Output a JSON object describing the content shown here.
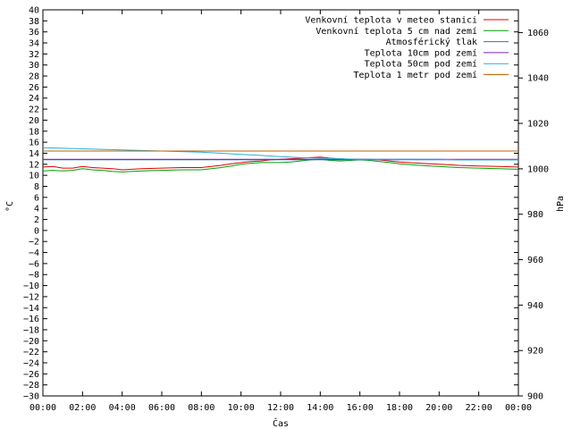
{
  "chart_data": {
    "type": "line",
    "xlabel": "Čas",
    "ylabel_left": "°C",
    "ylabel_right": "hPa",
    "x_ticks": [
      "00:00",
      "02:00",
      "04:00",
      "06:00",
      "08:00",
      "10:00",
      "12:00",
      "14:00",
      "16:00",
      "18:00",
      "20:00",
      "22:00",
      "00:00"
    ],
    "y_left_range": [
      -30,
      40
    ],
    "y_left_step": 2,
    "y_right_range": [
      900,
      1070
    ],
    "y_right_ticks": [
      900,
      920,
      940,
      960,
      980,
      1000,
      1020,
      1040,
      1060
    ],
    "grid": false,
    "legend_position": "top-right",
    "colors": {
      "venkovni": "#e00000",
      "venkovni5cm": "#00a000",
      "tlak": "#3070c0",
      "teplota10": "#8020c0",
      "teplota50": "#20b0e0",
      "teplota1m": "#c06000"
    },
    "series": [
      {
        "name": "Venkovní teplota v meteo stanici",
        "color_key": "venkovni",
        "axis": "left",
        "x_hours": [
          0,
          0.5,
          1,
          1.5,
          2,
          2.5,
          3,
          3.5,
          4,
          5,
          6,
          7,
          8,
          8.5,
          9,
          9.5,
          10,
          10.5,
          11,
          11.5,
          12,
          12.5,
          13,
          13.5,
          14,
          14.5,
          15,
          15.5,
          16,
          16.5,
          17,
          17.5,
          18,
          19,
          20,
          21,
          22,
          23,
          24
        ],
        "values": [
          11.5,
          11.6,
          11.3,
          11.3,
          11.6,
          11.4,
          11.3,
          11.2,
          11.0,
          11.2,
          11.3,
          11.4,
          11.4,
          11.6,
          11.8,
          12.1,
          12.3,
          12.5,
          12.6,
          12.8,
          12.9,
          13.0,
          13.1,
          13.2,
          13.3,
          13.1,
          13.0,
          12.9,
          12.9,
          12.9,
          12.8,
          12.6,
          12.4,
          12.2,
          12.0,
          11.8,
          11.7,
          11.6,
          11.5
        ]
      },
      {
        "name": "Venkovní teplota 5 cm nad zemí",
        "color_key": "venkovni5cm",
        "axis": "left",
        "x_hours": [
          0,
          0.5,
          1,
          1.5,
          2,
          2.5,
          3,
          3.5,
          4,
          5,
          6,
          7,
          8,
          8.5,
          9,
          9.5,
          10,
          10.5,
          11,
          11.5,
          12,
          12.5,
          13,
          13.5,
          14,
          14.5,
          15,
          15.5,
          16,
          16.5,
          17,
          17.5,
          18,
          19,
          20,
          21,
          22,
          23,
          24
        ],
        "values": [
          10.8,
          10.9,
          10.8,
          10.9,
          11.2,
          11.0,
          10.9,
          10.7,
          10.6,
          10.8,
          10.9,
          11.0,
          11.0,
          11.2,
          11.4,
          11.7,
          12.0,
          12.2,
          12.3,
          12.3,
          12.3,
          12.4,
          12.6,
          12.8,
          12.9,
          12.7,
          12.6,
          12.7,
          12.8,
          12.7,
          12.5,
          12.3,
          12.1,
          11.8,
          11.6,
          11.4,
          11.3,
          11.2,
          11.1
        ]
      },
      {
        "name": "Atmosférický tlak",
        "color_key": "tlak",
        "axis": "right",
        "x_hours": [
          0,
          2,
          4,
          6,
          8,
          10,
          12,
          14,
          16,
          18,
          20,
          22,
          24
        ],
        "values": [
          1004.0,
          1004.0,
          1004.0,
          1004.0,
          1004.0,
          1004.0,
          1004.0,
          1004.0,
          1004.0,
          1004.0,
          1004.0,
          1004.0,
          1004.0
        ]
      },
      {
        "name": "Teplota 10cm pod zemí",
        "color_key": "teplota10",
        "axis": "left",
        "x_hours": [
          0,
          2,
          4,
          6,
          8,
          10,
          12,
          14,
          16,
          18,
          20,
          22,
          24
        ],
        "values": [
          12.9,
          12.9,
          12.9,
          12.9,
          12.9,
          12.9,
          12.9,
          12.9,
          12.9,
          12.9,
          12.9,
          12.9,
          12.9
        ]
      },
      {
        "name": "Teplota 50cm pod zemí",
        "color_key": "teplota50",
        "axis": "left",
        "x_hours": [
          0,
          1,
          2,
          3,
          4,
          5,
          6,
          7,
          8,
          9,
          10,
          11,
          12,
          13,
          14,
          15,
          16,
          17,
          18,
          19,
          20,
          21,
          22,
          23,
          24
        ],
        "values": [
          15.0,
          14.9,
          14.8,
          14.7,
          14.6,
          14.5,
          14.4,
          14.3,
          14.2,
          14.0,
          13.8,
          13.6,
          13.4,
          13.2,
          13.1,
          13.0,
          12.9,
          12.9,
          12.9,
          12.9,
          12.9,
          12.8,
          12.8,
          12.8,
          12.8
        ]
      },
      {
        "name": "Teplota 1 metr pod zemí",
        "color_key": "teplota1m",
        "axis": "left",
        "x_hours": [
          0,
          2,
          4,
          6,
          8,
          10,
          12,
          14,
          16,
          18,
          20,
          22,
          24
        ],
        "values": [
          14.4,
          14.4,
          14.4,
          14.4,
          14.4,
          14.4,
          14.4,
          14.4,
          14.4,
          14.4,
          14.4,
          14.4,
          14.4
        ]
      }
    ]
  }
}
